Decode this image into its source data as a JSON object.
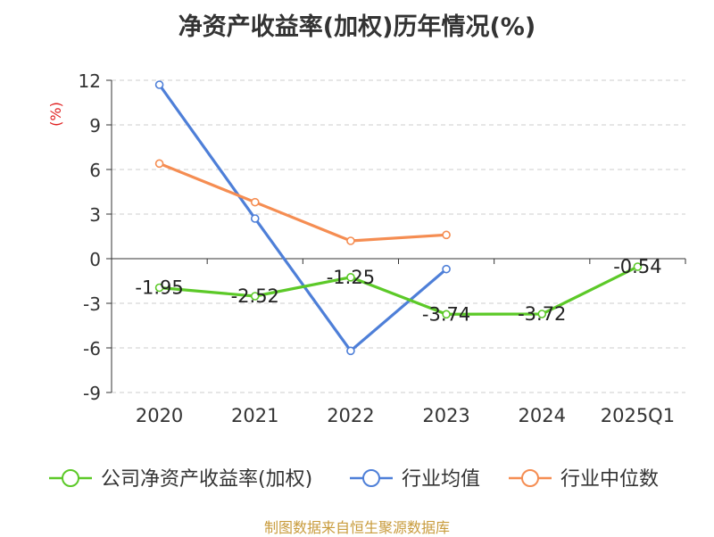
{
  "title": "净资产收益率(加权)历年情况(%)",
  "source": "制图数据来自恒生聚源数据库",
  "chart_data": {
    "type": "line",
    "title": "净资产收益率(加权)历年情况(%)",
    "ylabel": "(%)",
    "xlabel": "",
    "categories": [
      "2020",
      "2021",
      "2022",
      "2023",
      "2024",
      "2025Q1"
    ],
    "ylim": [
      -9,
      12
    ],
    "yticks": [
      12,
      9,
      6,
      3,
      0,
      -3,
      -6,
      -9
    ],
    "ytick_labels": [
      "12",
      "9",
      "6",
      "3",
      "0",
      "-3",
      "-6",
      "-9"
    ],
    "grid": true,
    "legend_position": "bottom",
    "series": [
      {
        "name": "公司净资产收益率(加权)",
        "color": "#5cc928",
        "values": [
          -1.95,
          -2.52,
          -1.25,
          -3.74,
          -3.72,
          -0.54
        ],
        "labels": [
          "-1.95",
          "-2.52",
          "-1.25",
          "-3.74",
          "-3.72",
          "-0.54"
        ]
      },
      {
        "name": "行业均值",
        "color": "#4e7fd8",
        "values": [
          11.7,
          2.7,
          -6.2,
          -0.7,
          null,
          null
        ]
      },
      {
        "name": "行业中位数",
        "color": "#f58d52",
        "values": [
          6.4,
          3.8,
          1.2,
          1.6,
          null,
          null
        ]
      }
    ]
  }
}
